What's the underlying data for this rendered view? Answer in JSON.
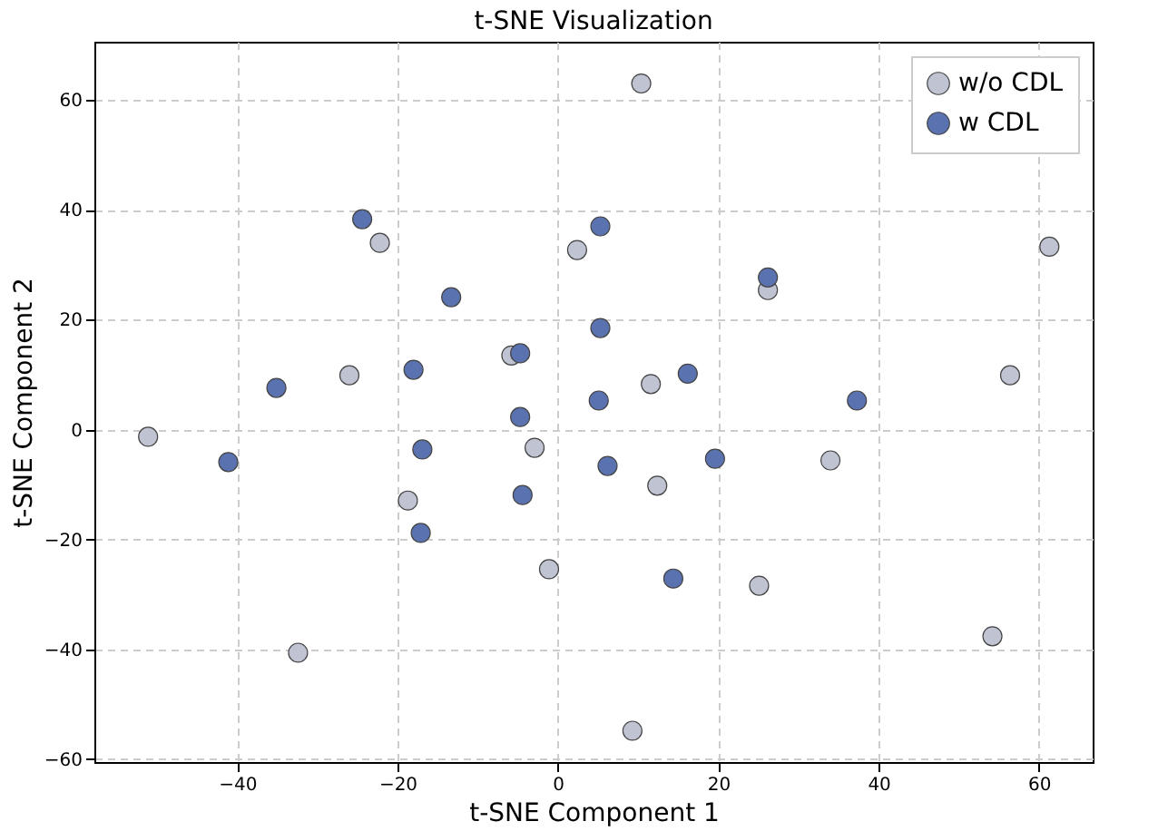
{
  "chart_data": {
    "type": "scatter",
    "title": "t-SNE Visualization",
    "xlabel": "t-SNE Component 1",
    "ylabel": "t-SNE Component 2",
    "xlim": [
      -57.8,
      66.7
    ],
    "ylim": [
      -60.5,
      70.6
    ],
    "xticks": [
      -40,
      -20,
      0,
      20,
      40,
      60
    ],
    "yticks": [
      -60,
      -40,
      -20,
      0,
      20,
      40,
      60
    ],
    "grid": true,
    "legend": "top right",
    "marker": "circle",
    "series": [
      {
        "name": "w/o CDL",
        "color": "#c0c4d2",
        "x": [
          10.4,
          -22.2,
          2.4,
          26.2,
          61.3,
          -5.8,
          -26.0,
          11.6,
          56.4,
          -51.1,
          -2.9,
          34.0,
          -18.7,
          12.4,
          -1.1,
          25.1,
          -32.4,
          54.2,
          9.3
        ],
        "values": [
          63.0,
          34.0,
          32.7,
          25.4,
          33.3,
          13.5,
          9.9,
          8.3,
          9.9,
          -1.3,
          -3.3,
          -5.6,
          -12.9,
          -10.2,
          -25.4,
          -28.4,
          -40.6,
          -37.6,
          -54.8
        ]
      },
      {
        "name": "w CDL",
        "color": "#5a72b0",
        "x": [
          -24.4,
          5.3,
          -13.3,
          26.2,
          -35.1,
          -18.0,
          -4.7,
          5.3,
          5.1,
          16.2,
          37.3,
          -4.7,
          -41.1,
          -16.9,
          19.6,
          6.2,
          -4.4,
          -17.1,
          14.4
        ],
        "values": [
          38.3,
          37.0,
          24.1,
          27.7,
          7.6,
          10.9,
          13.9,
          18.5,
          5.3,
          10.2,
          5.3,
          2.3,
          -5.9,
          -3.6,
          -5.3,
          -6.6,
          -11.9,
          -18.8,
          -27.1
        ]
      }
    ]
  }
}
